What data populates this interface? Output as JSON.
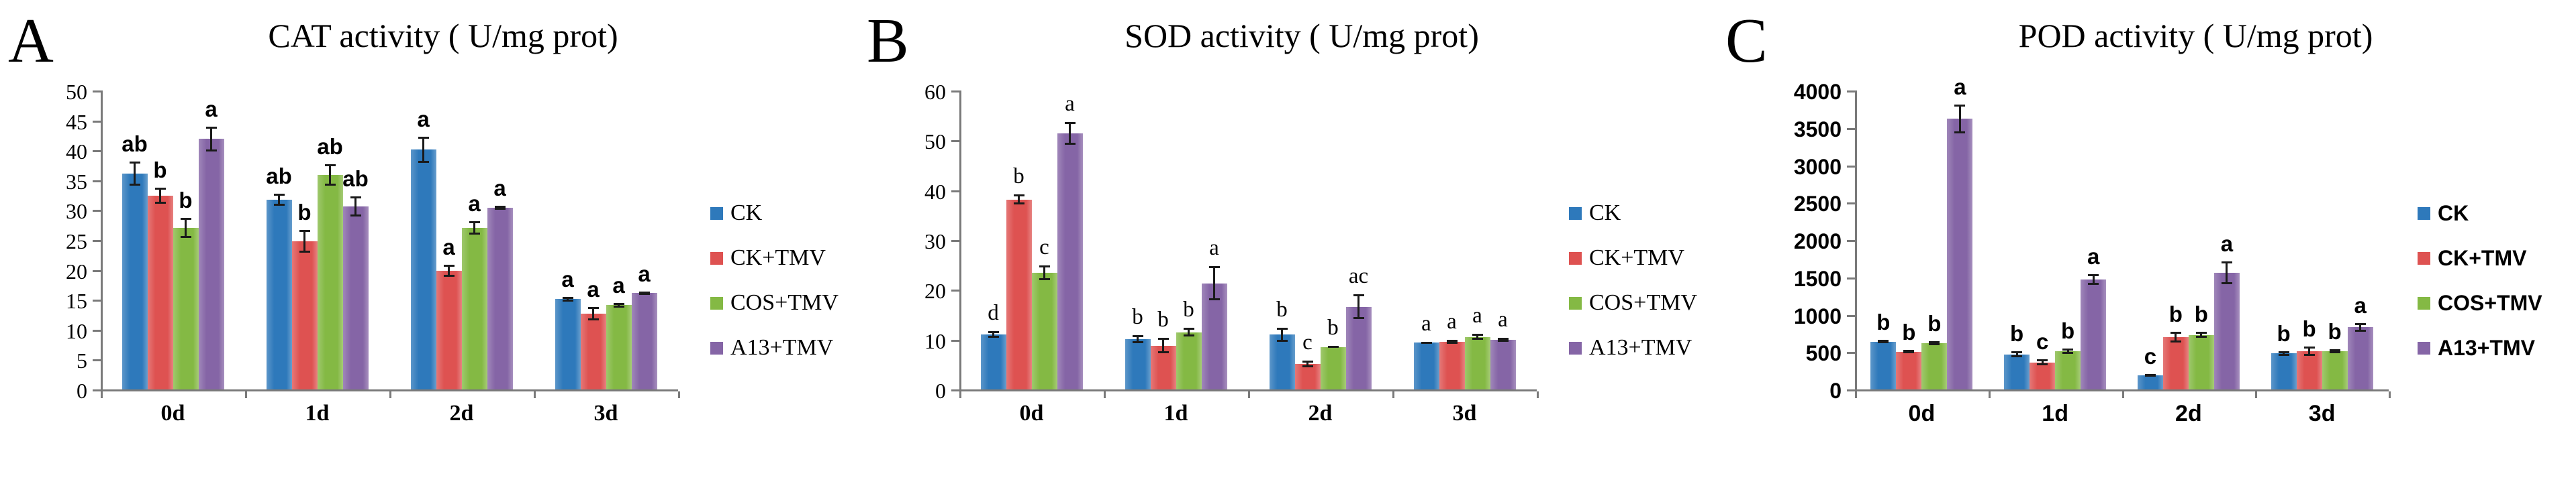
{
  "colors": {
    "ck": "#2e79bb",
    "ck_tmv": "#de5251",
    "cos_tmv": "#84b944",
    "a13_tmv": "#8565a6",
    "axis": "#7a7a7a",
    "error_bar": "#1a1a1a",
    "text": "#000000"
  },
  "legend_labels": [
    "CK",
    "CK+TMV",
    "COS+TMV",
    "A13+TMV"
  ],
  "chart_data": [
    {
      "type": "bar",
      "panel_letter": "A",
      "title": "CAT activity ( U/mg prot)",
      "ylim": [
        0,
        50
      ],
      "ytick_step": 5,
      "ytick_labels": [
        "0",
        "5",
        "10",
        "15",
        "20",
        "25",
        "30",
        "35",
        "40",
        "45",
        "50"
      ],
      "categories": [
        "0d",
        "1d",
        "2d",
        "3d"
      ],
      "grid": false,
      "legend_position": "right",
      "label_font": "serif",
      "sig_font": "sans",
      "series": [
        {
          "name": "CK",
          "color": "#2e79bb",
          "values": [
            36.1,
            31.7,
            40.1,
            15.1
          ],
          "errors": [
            2.0,
            1.0,
            2.2,
            0.4
          ],
          "sig_letters": [
            "ab",
            "ab",
            "a",
            "a"
          ]
        },
        {
          "name": "CK+TMV",
          "color": "#de5251",
          "values": [
            32.4,
            24.8,
            19.8,
            12.7
          ],
          "errors": [
            1.4,
            1.9,
            1.0,
            1.1
          ],
          "sig_letters": [
            "b",
            "b",
            "a",
            "a"
          ]
        },
        {
          "name": "COS+TMV",
          "color": "#84b944",
          "values": [
            27.0,
            35.9,
            27.0,
            14.1
          ],
          "errors": [
            1.7,
            1.8,
            1.1,
            0.4
          ],
          "sig_letters": [
            "b",
            "ab",
            "a",
            "a"
          ]
        },
        {
          "name": "A13+TMV",
          "color": "#8565a6",
          "values": [
            41.9,
            30.6,
            30.4,
            16.1
          ],
          "errors": [
            2.1,
            1.7,
            0.3,
            0.3
          ],
          "sig_letters": [
            "a",
            "ab",
            "a",
            "a"
          ]
        }
      ]
    },
    {
      "type": "bar",
      "panel_letter": "B",
      "title": "SOD activity ( U/mg prot)",
      "ylim": [
        0,
        60
      ],
      "ytick_step": 10,
      "ytick_labels": [
        "0",
        "10",
        "20",
        "30",
        "40",
        "50",
        "60"
      ],
      "categories": [
        "0d",
        "1d",
        "2d",
        "3d"
      ],
      "grid": false,
      "legend_position": "right",
      "label_font": "serif",
      "sig_font": "serif",
      "series": [
        {
          "name": "CK",
          "color": "#2e79bb",
          "values": [
            11.0,
            10.1,
            11.0,
            9.4
          ],
          "errors": [
            0.7,
            0.8,
            1.4,
            0.2
          ],
          "sig_letters": [
            "d",
            "b",
            "b",
            "a"
          ]
        },
        {
          "name": "CK+TMV",
          "color": "#de5251",
          "values": [
            38.1,
            8.8,
            5.1,
            9.6
          ],
          "errors": [
            1.0,
            1.5,
            0.7,
            0.4
          ],
          "sig_letters": [
            "b",
            "b",
            "c",
            "a"
          ]
        },
        {
          "name": "COS+TMV",
          "color": "#84b944",
          "values": [
            23.4,
            11.5,
            8.5,
            10.5
          ],
          "errors": [
            1.5,
            0.9,
            0.2,
            0.6
          ],
          "sig_letters": [
            "c",
            "b",
            "b",
            "a"
          ]
        },
        {
          "name": "A13+TMV",
          "color": "#8565a6",
          "values": [
            51.4,
            21.3,
            16.6,
            9.9
          ],
          "errors": [
            2.3,
            3.4,
            2.5,
            0.4
          ],
          "sig_letters": [
            "a",
            "a",
            "ac",
            "a"
          ]
        }
      ]
    },
    {
      "type": "bar",
      "panel_letter": "C",
      "title": "POD activity ( U/mg prot)",
      "ylim": [
        0,
        4000
      ],
      "ytick_step": 500,
      "ytick_labels": [
        "0",
        "500",
        "1000",
        "1500",
        "2000",
        "2500",
        "3000",
        "3500",
        "4000"
      ],
      "categories": [
        "0d",
        "1d",
        "2d",
        "3d"
      ],
      "grid": false,
      "legend_position": "right",
      "label_font": "sans",
      "sig_font": "sans",
      "series": [
        {
          "name": "CK",
          "color": "#2e79bb",
          "values": [
            640,
            470,
            190,
            480
          ],
          "errors": [
            25,
            40,
            20,
            30
          ],
          "sig_letters": [
            "b",
            "b",
            "c",
            "b"
          ]
        },
        {
          "name": "CK+TMV",
          "color": "#de5251",
          "values": [
            505,
            360,
            700,
            510
          ],
          "errors": [
            20,
            40,
            70,
            60
          ],
          "sig_letters": [
            "b",
            "c",
            "b",
            "b"
          ]
        },
        {
          "name": "COS+TMV",
          "color": "#84b944",
          "values": [
            620,
            510,
            730,
            510
          ],
          "errors": [
            25,
            35,
            40,
            25
          ],
          "sig_letters": [
            "b",
            "b",
            "b",
            "b"
          ]
        },
        {
          "name": "A13+TMV",
          "color": "#8565a6",
          "values": [
            3620,
            1470,
            1560,
            830
          ],
          "errors": [
            190,
            75,
            150,
            60
          ],
          "sig_letters": [
            "a",
            "a",
            "a",
            "a"
          ]
        }
      ]
    }
  ]
}
